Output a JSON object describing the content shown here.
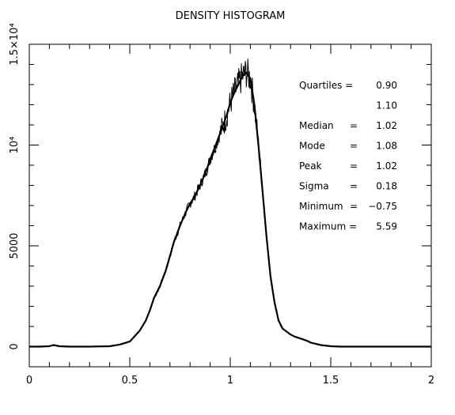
{
  "chart_data": {
    "type": "line",
    "title": "DENSITY HISTOGRAM",
    "xlabel": "",
    "ylabel": "",
    "xlim": [
      0,
      2
    ],
    "ylim": [
      -1000,
      15000
    ],
    "x_ticks": [
      0,
      0.5,
      1,
      1.5,
      2
    ],
    "x_tick_labels": [
      "0",
      "0.5",
      "1",
      "1.5",
      "2"
    ],
    "y_ticks": [
      0,
      5000,
      10000,
      15000
    ],
    "y_tick_labels": [
      "0",
      "5000",
      "10⁴",
      "1.5×10⁴"
    ],
    "grid": false,
    "x": [
      0.0,
      0.05,
      0.1,
      0.12,
      0.15,
      0.2,
      0.3,
      0.4,
      0.45,
      0.5,
      0.55,
      0.58,
      0.6,
      0.62,
      0.65,
      0.68,
      0.7,
      0.72,
      0.75,
      0.78,
      0.8,
      0.82,
      0.85,
      0.88,
      0.9,
      0.92,
      0.95,
      0.98,
      1.0,
      1.02,
      1.04,
      1.06,
      1.08,
      1.1,
      1.12,
      1.14,
      1.16,
      1.18,
      1.2,
      1.22,
      1.24,
      1.26,
      1.28,
      1.3,
      1.32,
      1.35,
      1.38,
      1.4,
      1.45,
      1.5,
      1.55,
      1.6,
      2.0
    ],
    "y": [
      0,
      0,
      20,
      80,
      20,
      0,
      0,
      20,
      100,
      250,
      800,
      1300,
      1800,
      2400,
      3000,
      3800,
      4500,
      5200,
      6000,
      6700,
      7100,
      7400,
      8000,
      8700,
      9300,
      9800,
      10600,
      11400,
      12100,
      12600,
      13000,
      13400,
      13600,
      13300,
      12000,
      10000,
      7800,
      5500,
      3500,
      2200,
      1300,
      900,
      750,
      600,
      500,
      400,
      300,
      200,
      80,
      20,
      0,
      0,
      0
    ]
  },
  "stats": [
    {
      "label": "Quartiles =",
      "value": "0.90"
    },
    {
      "label": "",
      "value": "1.10"
    },
    {
      "label": "Median",
      "eq": "=",
      "value": "1.02"
    },
    {
      "label": "Mode",
      "eq": "=",
      "value": "1.08"
    },
    {
      "label": "Peak",
      "eq": "=",
      "value": "1.02"
    },
    {
      "label": "Sigma",
      "eq": "=",
      "value": "0.18"
    },
    {
      "label": "Minimum",
      "eq": "=",
      "value": "−0.75"
    },
    {
      "label": "Maximum =",
      "value": "5.59"
    }
  ]
}
